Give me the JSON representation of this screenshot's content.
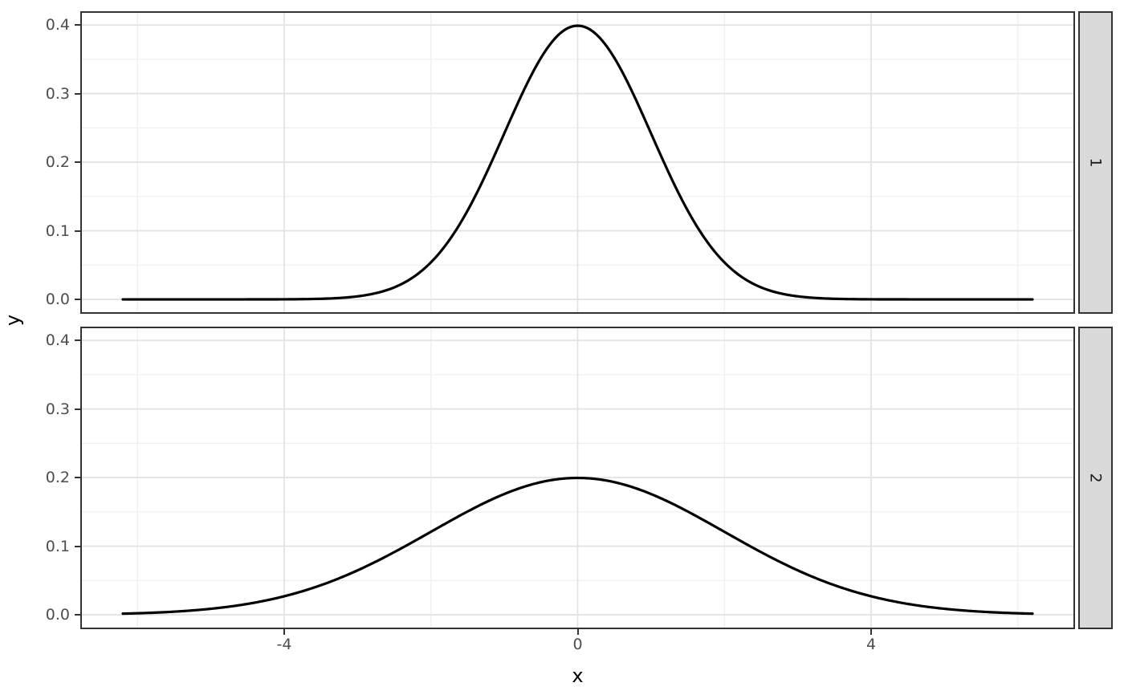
{
  "chart_data": {
    "type": "line",
    "title": "",
    "xlabel": "x",
    "ylabel": "y",
    "grid": "on",
    "legend": "none",
    "facet_layout": "rows, strips on right",
    "x_domain": [
      -6.2,
      6.2
    ],
    "x_axis": {
      "ticks": [
        -4,
        0,
        4
      ],
      "tick_labels": [
        "-4",
        "0",
        "4"
      ],
      "minor_ticks": [
        -6,
        -2,
        2,
        6
      ],
      "range": [
        -6.78,
        6.78
      ]
    },
    "y_axis": {
      "ticks": [
        0,
        0.1,
        0.2,
        0.3,
        0.4
      ],
      "tick_labels": [
        "0.0",
        "0.1",
        "0.2",
        "0.3",
        "0.4"
      ],
      "minor_ticks": [
        0.05,
        0.15,
        0.25,
        0.35
      ],
      "range": [
        -0.021,
        0.42
      ]
    },
    "facets": [
      {
        "strip_label": "1",
        "curve": {
          "name": "normal density, mean 0, sd 1",
          "distribution": "normal",
          "mean": 0,
          "sd": 1,
          "peak": [
            0,
            0.3989
          ]
        }
      },
      {
        "strip_label": "2",
        "curve": {
          "name": "normal density, mean 0, sd 2",
          "distribution": "normal",
          "mean": 0,
          "sd": 2,
          "peak": [
            0,
            0.1995
          ]
        }
      }
    ],
    "sample_points": {
      "x": [
        -6,
        -5,
        -4,
        -3,
        -2,
        -1,
        0,
        1,
        2,
        3,
        4,
        5,
        6
      ],
      "facet_1_y": [
        0.0,
        0.0,
        0.0001,
        0.0044,
        0.054,
        0.242,
        0.3989,
        0.242,
        0.054,
        0.0044,
        0.0001,
        0.0,
        0.0
      ],
      "facet_2_y": [
        0.0022,
        0.0088,
        0.027,
        0.0648,
        0.121,
        0.176,
        0.1995,
        0.176,
        0.121,
        0.0648,
        0.027,
        0.0088,
        0.0022
      ]
    }
  },
  "colors": {
    "background": "#FFFFFF",
    "curve": "#000000",
    "panel_border": "#333333",
    "grid_major": "#E3E3E3",
    "grid_minor": "#F0F0F0",
    "strip_fill": "#D9D9D9",
    "strip_border": "#333333",
    "tick_mark": "#333333",
    "tick_label": "#4D4D4D",
    "axis_title": "#000000"
  }
}
